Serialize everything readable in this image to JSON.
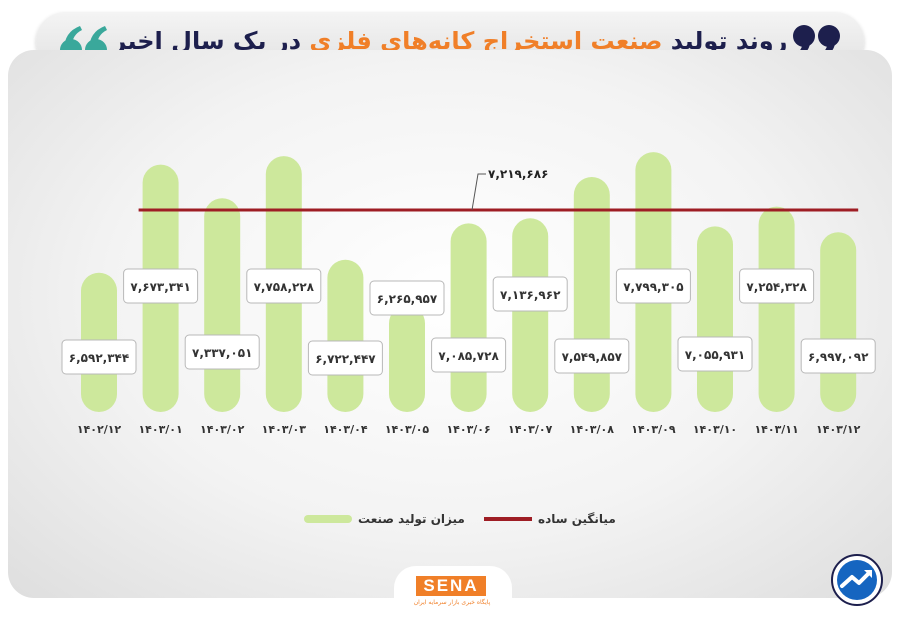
{
  "header": {
    "title_part1": "روند تولید",
    "title_highlight": "صنعت استخراج کانه‌های فلزی",
    "title_part2": "در یک سال اخیر"
  },
  "brand": {
    "name": "SENA",
    "subtitle": "پایگاه خبری بازار سرمایه ایران"
  },
  "colors": {
    "bar": "#cde89c",
    "average_line": "#9e1d24",
    "title_dark": "#1d1f4d",
    "accent": "#f07f28",
    "quote_mark": "#3aa89b"
  },
  "chart_data": {
    "type": "bar",
    "categories": [
      "۱۴۰۲/۱۲",
      "۱۴۰۳/۰۱",
      "۱۴۰۳/۰۲",
      "۱۴۰۳/۰۳",
      "۱۴۰۳/۰۴",
      "۱۴۰۳/۰۵",
      "۱۴۰۳/۰۶",
      "۱۴۰۳/۰۷",
      "۱۴۰۳/۰۸",
      "۱۴۰۳/۰۹",
      "۱۴۰۳/۱۰",
      "۱۴۰۳/۱۱",
      "۱۴۰۳/۱۲"
    ],
    "values": [
      6592344,
      7673341,
      7337051,
      7758228,
      6722447,
      6265957,
      7085728,
      7136962,
      7549857,
      7799305,
      7055931,
      7254328,
      6997092
    ],
    "value_labels": [
      "۶,۵۹۲,۳۴۴",
      "۷,۶۷۳,۳۴۱",
      "۷,۳۳۷,۰۵۱",
      "۷,۷۵۸,۲۲۸",
      "۶,۷۲۲,۴۴۷",
      "۶,۲۶۵,۹۵۷",
      "۷,۰۸۵,۷۲۸",
      "۷,۱۳۶,۹۶۲",
      "۷,۵۴۹,۸۵۷",
      "۷,۷۹۹,۳۰۵",
      "۷,۰۵۵,۹۳۱",
      "۷,۲۵۴,۳۲۸",
      "۶,۹۹۷,۰۹۲"
    ],
    "average": 7219686,
    "average_label": "۷,۲۱۹,۶۸۶",
    "series": [
      {
        "name": "میزان تولید صنعت",
        "kind": "bar"
      },
      {
        "name": "میانگین ساده",
        "kind": "line"
      }
    ],
    "legend_position": "bottom",
    "grid": false
  }
}
